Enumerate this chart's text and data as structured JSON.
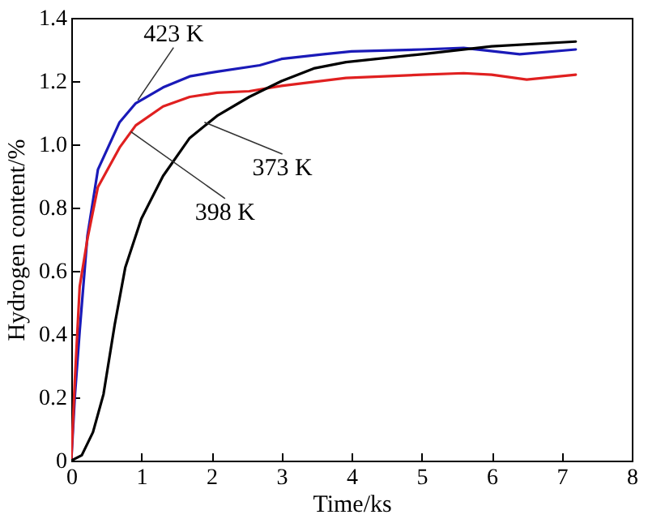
{
  "chart_data": {
    "type": "line",
    "xlabel": "Time/ks",
    "ylabel": "Hydrogen content/%",
    "xlim": [
      0,
      8
    ],
    "xticks": [
      0,
      1,
      2,
      3,
      4,
      5,
      6,
      7,
      8
    ],
    "ylim": [
      0,
      1.4
    ],
    "yticks": [
      0,
      0.2,
      0.4,
      0.6,
      0.8,
      {
        "value": 1.0,
        "label": "1.0"
      },
      1.2,
      1.4
    ],
    "grid": false,
    "line_style": "solid",
    "marker": "none",
    "series": [
      {
        "color": "#1a1ab8",
        "x": [
          0,
          0.05,
          0.12,
          0.23,
          0.38,
          0.69,
          0.92,
          1.31,
          1.69,
          2.08,
          2.69,
          3.0,
          3.6,
          4.0,
          5.0,
          5.6,
          6.4,
          7.2
        ],
        "values": [
          0,
          0.2,
          0.41,
          0.71,
          0.92,
          1.07,
          1.13,
          1.18,
          1.215,
          1.23,
          1.25,
          1.27,
          1.285,
          1.294,
          1.3,
          1.305,
          1.285,
          1.3
        ]
      },
      {
        "color": "#e02020",
        "x": [
          0,
          0.05,
          0.12,
          0.23,
          0.38,
          0.69,
          0.92,
          1.31,
          1.69,
          2.08,
          2.54,
          3.0,
          3.92,
          5.0,
          5.6,
          6.0,
          6.5,
          7.2
        ],
        "values": [
          0,
          0.25,
          0.55,
          0.7,
          0.865,
          0.99,
          1.06,
          1.12,
          1.15,
          1.163,
          1.168,
          1.185,
          1.21,
          1.22,
          1.225,
          1.22,
          1.205,
          1.22
        ]
      },
      {
        "color": "#000000",
        "x": [
          0,
          0.15,
          0.31,
          0.46,
          0.62,
          0.77,
          1.0,
          1.31,
          1.69,
          2.08,
          2.54,
          3.0,
          3.46,
          3.92,
          5.0,
          6.0,
          7.2
        ],
        "values": [
          0,
          0.017,
          0.09,
          0.21,
          0.43,
          0.61,
          0.765,
          0.9,
          1.02,
          1.09,
          1.15,
          1.2,
          1.24,
          1.26,
          1.285,
          1.31,
          1.325
        ]
      }
    ],
    "annotations": [
      {
        "text": "423 K",
        "x": 0.95,
        "y": 1.14
      },
      {
        "text": "398 K",
        "x": 0.85,
        "y": 1.04
      },
      {
        "text": "373 K",
        "x": 1.9,
        "y": 1.07
      }
    ]
  }
}
